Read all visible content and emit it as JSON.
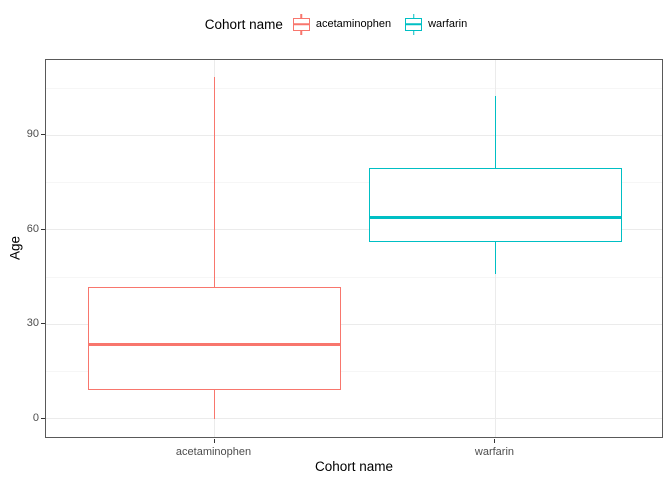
{
  "legend": {
    "title": "Cohort name",
    "items": [
      {
        "label": "acetaminophen",
        "color": "#F8766D"
      },
      {
        "label": "warfarin",
        "color": "#00BFC4"
      }
    ]
  },
  "chart_data": {
    "type": "boxplot",
    "title": "",
    "xlabel": "Cohort name",
    "ylabel": "Age",
    "categories": [
      "acetaminophen",
      "warfarin"
    ],
    "series": [
      {
        "name": "acetaminophen",
        "color": "#F8766D",
        "min": 0,
        "q1": 9,
        "median": 23.5,
        "q3": 42,
        "max": 108.5
      },
      {
        "name": "warfarin",
        "color": "#00BFC4",
        "min": 46,
        "q1": 56,
        "median": 64,
        "q3": 79.5,
        "max": 102.5
      }
    ],
    "y_ticks": [
      0,
      30,
      60,
      90
    ],
    "y_minor_ticks": [
      15,
      45,
      75,
      105
    ],
    "ylim": [
      -6.4,
      113.9
    ],
    "grid": true,
    "legend_position": "top"
  },
  "colors": {
    "panel_border": "#595959",
    "grid_major": "#ebebeb",
    "grid_minor": "#f6f6f6",
    "tick_mark": "#333333",
    "tick_label": "#4d4d4d",
    "axis_title": "#000000"
  }
}
